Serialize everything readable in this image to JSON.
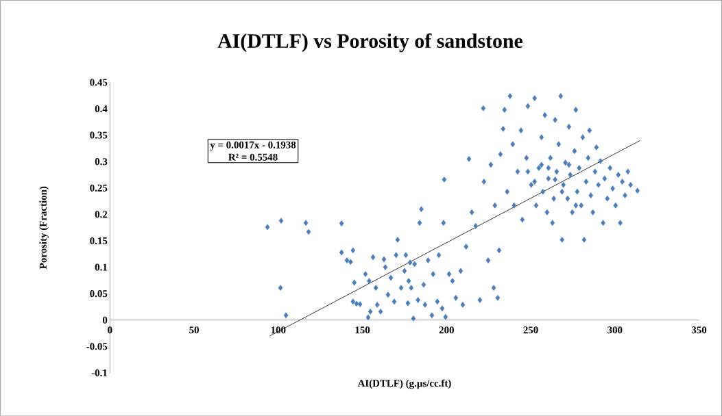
{
  "chart_data": {
    "type": "scatter",
    "title": "AI(DTLF) vs Porosity of sandstone",
    "xlabel": "AI(DTLF) (g.µs/cc.ft)",
    "ylabel": "Porosity (Fraction)",
    "xlim": [
      0,
      350
    ],
    "ylim": [
      -0.1,
      0.45
    ],
    "xticks": [
      0,
      50,
      100,
      150,
      200,
      250,
      300,
      350
    ],
    "yticks": [
      -0.1,
      -0.05,
      0,
      0.05,
      0.1,
      0.15,
      0.2,
      0.25,
      0.3,
      0.35,
      0.4,
      0.45
    ],
    "annotations": [
      "y = 0.0017x - 0.1938",
      "R² = 0.5548"
    ],
    "series": [
      {
        "marker": "diamond",
        "color": "#4a7ebb",
        "x": [
          93.6,
          101.7,
          116.4,
          118,
          137.6,
          101.3,
          104.6,
          137.6,
          140.8,
          143,
          144.4,
          145.2,
          144.4,
          146.5,
          148.6,
          151.8,
          154,
          156.3,
          158,
          158.8,
          160.8,
          154.7,
          153.4,
          162.8,
          163.6,
          165.2,
          166.9,
          168.9,
          170,
          170.9,
          173,
          175,
          175.8,
          177,
          177.5,
          178.3,
          179,
          180.3,
          181,
          183,
          184,
          186.4,
          185,
          187.2,
          189,
          191.3,
          192,
          194.5,
          195.4,
          197.4,
          198.2,
          198.6,
          199.4,
          201.5,
          203.5,
          205.5,
          208.4,
          209.6,
          211.6,
          213.3,
          215,
          217.3,
          219.8,
          221.8,
          222.2,
          224.7,
          226.3,
          228,
          228.7,
          230.4,
          231.2,
          232,
          233.6,
          234.4,
          236,
          237.7,
          239.3,
          240.1,
          242.2,
          244.2,
          245,
          247.5,
          248.3,
          250.3,
          252.3,
          253.2,
          254.8,
          256.4,
          257.2,
          258.4,
          259.7,
          260.5,
          261.7,
          262.9,
          263.7,
          264.5,
          265.4,
          266.6,
          267.8,
          268.6,
          269.4,
          270.6,
          271.9,
          272.7,
          273.5,
          274.7,
          276,
          276.8,
          277.6,
          278.8,
          280,
          280.9,
          281.7,
          282.9,
          284.1,
          284.9,
          285.7,
          286.9,
          288.2,
          289,
          290.2,
          291.4,
          293,
          293.9,
          295.5,
          297.1,
          298.7,
          300.4,
          302,
          303.2,
          304.4,
          306,
          307.7,
          309.3,
          313.4,
          248.3,
          252.3,
          256.4,
          260.5,
          264.5,
          268.6,
          272.7,
          276.8
        ],
        "values": [
          0.176,
          0.188,
          0.184,
          0.167,
          0.183,
          0.061,
          0.009,
          0.128,
          0.113,
          0.11,
          0.132,
          0.071,
          0.035,
          0.031,
          0.03,
          0.087,
          0.074,
          0.119,
          0.061,
          0.029,
          0.016,
          0.016,
          0.005,
          0.115,
          0.1,
          0.048,
          0.08,
          0.035,
          0.123,
          0.152,
          0.061,
          0.093,
          0.123,
          0.032,
          0.074,
          0.109,
          0.061,
          0.003,
          0.106,
          0.038,
          0.184,
          0.067,
          0.21,
          0.029,
          0.113,
          0.009,
          0.087,
          0.035,
          0.123,
          0.022,
          0.184,
          0.266,
          0.006,
          0.087,
          0.074,
          0.042,
          0.093,
          0.029,
          0.139,
          0.305,
          0.204,
          0.178,
          0.038,
          0.401,
          0.262,
          0.113,
          0.294,
          0.061,
          0.217,
          0.042,
          0.132,
          0.314,
          0.362,
          0.398,
          0.243,
          0.424,
          0.333,
          0.217,
          0.281,
          0.359,
          0.19,
          0.307,
          0.405,
          0.256,
          0.42,
          0.217,
          0.288,
          0.346,
          0.243,
          0.388,
          0.204,
          0.268,
          0.307,
          0.184,
          0.23,
          0.379,
          0.281,
          0.333,
          0.424,
          0.152,
          0.256,
          0.298,
          0.23,
          0.366,
          0.275,
          0.204,
          0.32,
          0.398,
          0.243,
          0.288,
          0.217,
          0.346,
          0.152,
          0.262,
          0.307,
          0.359,
          0.236,
          0.204,
          0.281,
          0.327,
          0.256,
          0.301,
          0.184,
          0.268,
          0.23,
          0.288,
          0.249,
          0.217,
          0.275,
          0.184,
          0.262,
          0.236,
          0.281,
          0.256,
          0.245,
          0.281,
          0.262,
          0.294,
          0.288,
          0.266,
          0.243,
          0.294,
          0.217
        ]
      },
      {
        "type": "line",
        "marker": "none",
        "color": "#000000",
        "x": [
          95,
          315
        ],
        "values": [
          -0.03,
          0.34
        ]
      }
    ]
  }
}
